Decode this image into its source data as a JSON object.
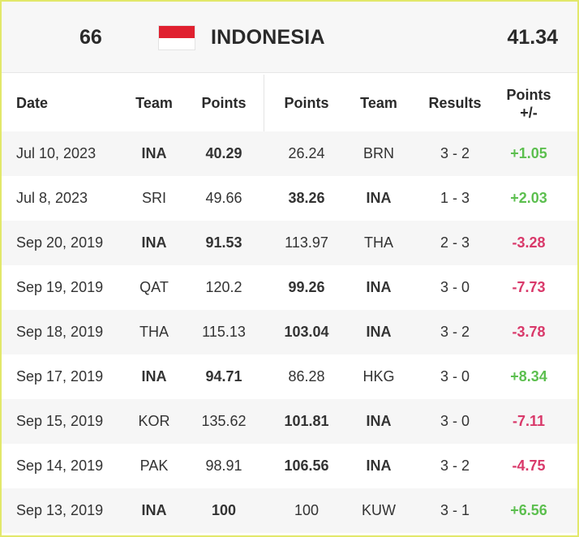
{
  "header": {
    "rank": "66",
    "country": "INDONESIA",
    "total_points": "41.34",
    "flag_colors": {
      "top": "#e0202f",
      "bottom": "#ffffff"
    }
  },
  "columns": {
    "date": "Date",
    "team1": "Team",
    "points1": "Points",
    "points2": "Points",
    "team2": "Team",
    "results": "Results",
    "points_change_line1": "Points",
    "points_change_line2": "+/-"
  },
  "colors": {
    "positive": "#5cbf4f",
    "negative": "#d9396a",
    "accent_border": "#e2e86a"
  },
  "rows": [
    {
      "date": "Jul 10, 2023",
      "team1": "INA",
      "points1": "40.29",
      "points2": "26.24",
      "team2": "BRN",
      "result": "3 - 2",
      "change": "+1.05",
      "home": true,
      "positive": true
    },
    {
      "date": "Jul 8, 2023",
      "team1": "SRI",
      "points1": "49.66",
      "points2": "38.26",
      "team2": "INA",
      "result": "1 - 3",
      "change": "+2.03",
      "home": false,
      "positive": true
    },
    {
      "date": "Sep 20, 2019",
      "team1": "INA",
      "points1": "91.53",
      "points2": "113.97",
      "team2": "THA",
      "result": "2 - 3",
      "change": "-3.28",
      "home": true,
      "positive": false
    },
    {
      "date": "Sep 19, 2019",
      "team1": "QAT",
      "points1": "120.2",
      "points2": "99.26",
      "team2": "INA",
      "result": "3 - 0",
      "change": "-7.73",
      "home": false,
      "positive": false
    },
    {
      "date": "Sep 18, 2019",
      "team1": "THA",
      "points1": "115.13",
      "points2": "103.04",
      "team2": "INA",
      "result": "3 - 2",
      "change": "-3.78",
      "home": false,
      "positive": false
    },
    {
      "date": "Sep 17, 2019",
      "team1": "INA",
      "points1": "94.71",
      "points2": "86.28",
      "team2": "HKG",
      "result": "3 - 0",
      "change": "+8.34",
      "home": true,
      "positive": true
    },
    {
      "date": "Sep 15, 2019",
      "team1": "KOR",
      "points1": "135.62",
      "points2": "101.81",
      "team2": "INA",
      "result": "3 - 0",
      "change": "-7.11",
      "home": false,
      "positive": false
    },
    {
      "date": "Sep 14, 2019",
      "team1": "PAK",
      "points1": "98.91",
      "points2": "106.56",
      "team2": "INA",
      "result": "3 - 2",
      "change": "-4.75",
      "home": false,
      "positive": false
    },
    {
      "date": "Sep 13, 2019",
      "team1": "INA",
      "points1": "100",
      "points2": "100",
      "team2": "KUW",
      "result": "3 - 1",
      "change": "+6.56",
      "home": true,
      "positive": true
    }
  ]
}
